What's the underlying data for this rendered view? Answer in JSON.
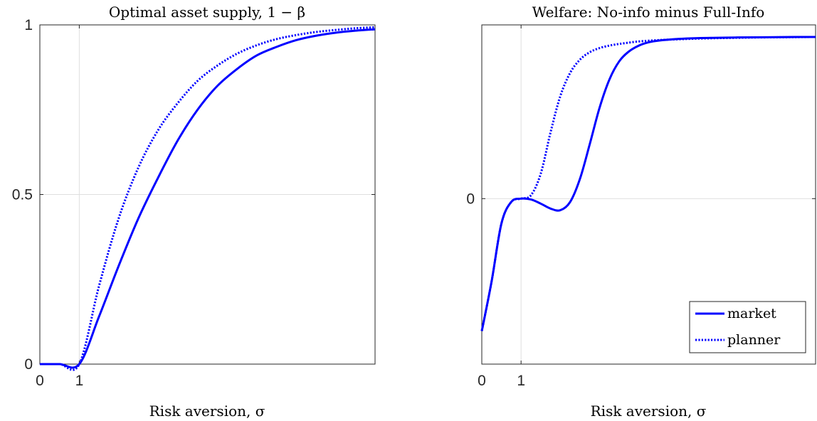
{
  "chart_data": [
    {
      "type": "line",
      "title": "Optimal asset supply, 1 − β",
      "xlabel": "Risk aversion, σ",
      "ylabel": "",
      "xlim": [
        0,
        8.5
      ],
      "ylim": [
        0,
        1
      ],
      "xticks": [
        {
          "value": 0,
          "label": "0"
        },
        {
          "value": 1,
          "label": "1"
        }
      ],
      "yticks": [
        {
          "value": 0,
          "label": "0"
        },
        {
          "value": 0.5,
          "label": "0.5"
        },
        {
          "value": 1,
          "label": "1"
        }
      ],
      "grid": true,
      "color": "#0000ff",
      "series": [
        {
          "style": "solid",
          "x": [
            0,
            0.5,
            1,
            1.5,
            2,
            2.5,
            3,
            3.5,
            4,
            4.5,
            5,
            5.5,
            6,
            6.5,
            7,
            7.5,
            8,
            8.5
          ],
          "y": [
            0,
            0,
            0,
            0.14,
            0.29,
            0.43,
            0.55,
            0.66,
            0.75,
            0.82,
            0.87,
            0.91,
            0.935,
            0.955,
            0.968,
            0.977,
            0.983,
            0.987
          ]
        },
        {
          "style": "dotted",
          "x": [
            0,
            0.5,
            1,
            1.5,
            2,
            2.5,
            3,
            3.5,
            4,
            4.5,
            5,
            5.5,
            6,
            6.5,
            7,
            7.5,
            8,
            8.5
          ],
          "y": [
            0,
            0,
            0,
            0.23,
            0.43,
            0.58,
            0.69,
            0.77,
            0.835,
            0.88,
            0.915,
            0.94,
            0.958,
            0.97,
            0.979,
            0.985,
            0.99,
            0.993
          ]
        }
      ]
    },
    {
      "type": "line",
      "title": "Welfare: No-info minus Full-Info",
      "xlabel": "Risk aversion, σ",
      "ylabel": "",
      "xlim": [
        0,
        8.5
      ],
      "ylim": [
        -1,
        1.05
      ],
      "xticks": [
        {
          "value": 0,
          "label": "0"
        },
        {
          "value": 1,
          "label": "1"
        }
      ],
      "yticks": [
        {
          "value": 0,
          "label": "0"
        }
      ],
      "grid": true,
      "color": "#0000ff",
      "legend": {
        "position": "bottom-right",
        "entries": [
          {
            "label": "market",
            "style": "solid"
          },
          {
            "label": "planner",
            "style": "dotted"
          }
        ]
      },
      "series": [
        {
          "name": "market",
          "style": "solid",
          "x": [
            0,
            0.25,
            0.5,
            0.75,
            1,
            1.25,
            1.5,
            1.75,
            2,
            2.25,
            2.5,
            2.75,
            3,
            3.25,
            3.5,
            3.75,
            4,
            4.25,
            4.5,
            5,
            5.5,
            6,
            6.5,
            7,
            7.5,
            8,
            8.5
          ],
          "y": [
            -0.8,
            -0.5,
            -0.15,
            -0.02,
            0,
            -0.005,
            -0.03,
            -0.06,
            -0.07,
            -0.02,
            0.12,
            0.33,
            0.55,
            0.72,
            0.83,
            0.89,
            0.925,
            0.945,
            0.955,
            0.965,
            0.97,
            0.972,
            0.974,
            0.975,
            0.976,
            0.977,
            0.977
          ]
        },
        {
          "name": "planner",
          "style": "dotted",
          "x": [
            0,
            0.25,
            0.5,
            0.75,
            1,
            1.25,
            1.5,
            1.75,
            2,
            2.25,
            2.5,
            2.75,
            3,
            3.25,
            3.5,
            3.75,
            4,
            4.5,
            5,
            5.5,
            6,
            6.5,
            7,
            7.5,
            8,
            8.5
          ],
          "y": [
            -0.8,
            -0.5,
            -0.15,
            -0.02,
            0,
            0.02,
            0.15,
            0.4,
            0.62,
            0.76,
            0.84,
            0.885,
            0.91,
            0.925,
            0.935,
            0.943,
            0.95,
            0.958,
            0.963,
            0.967,
            0.97,
            0.972,
            0.974,
            0.975,
            0.976,
            0.977
          ]
        }
      ]
    }
  ]
}
